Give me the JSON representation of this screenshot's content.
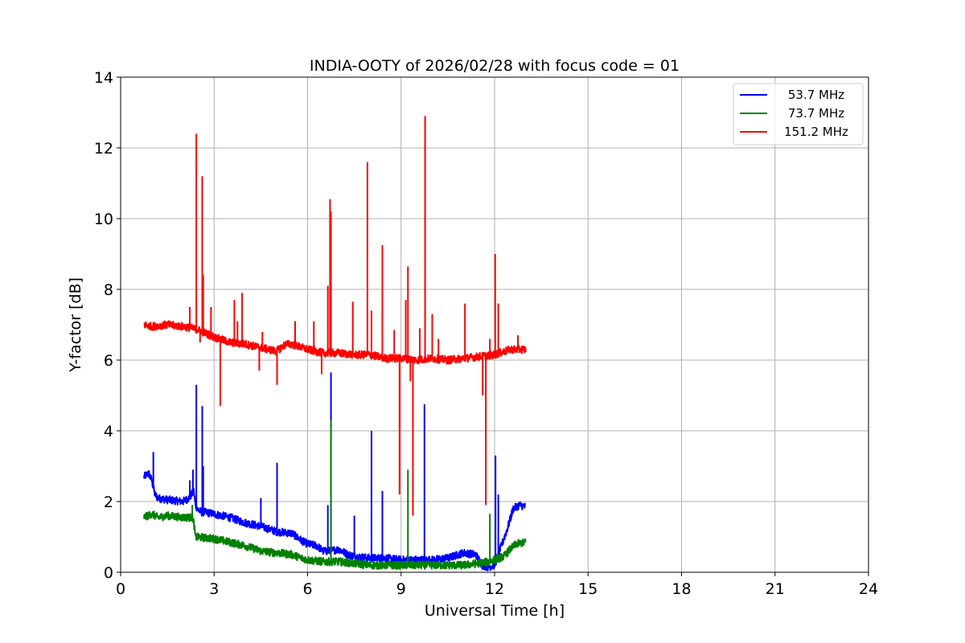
{
  "chart_data": {
    "type": "line",
    "title": "INDIA-OOTY of 2026/02/28 with focus code = 01",
    "xlabel": "Universal Time [h]",
    "ylabel": "Y-factor [dB]",
    "xlim": [
      0,
      24
    ],
    "ylim": [
      0,
      14
    ],
    "x_ticks": [
      0,
      3,
      6,
      9,
      12,
      15,
      18,
      21,
      24
    ],
    "y_ticks": [
      0,
      2,
      4,
      6,
      8,
      10,
      12,
      14
    ],
    "x_tick_labels": [
      "0",
      "3",
      "6",
      "9",
      "12",
      "15",
      "18",
      "21",
      "24"
    ],
    "y_tick_labels": [
      "0",
      "2",
      "4",
      "6",
      "8",
      "10",
      "12",
      "14"
    ],
    "grid": true,
    "legend_position": "top-right",
    "series": [
      {
        "name": " 53.7 MHz",
        "color": "#0000ff",
        "x": [
          0.75,
          0.9,
          1.0,
          1.1,
          1.2,
          1.5,
          2.0,
          2.2,
          2.35,
          2.4,
          2.5,
          2.6,
          2.7,
          3.0,
          3.5,
          4.0,
          4.5,
          5.0,
          5.5,
          5.8,
          6.0,
          6.3,
          6.5,
          6.7,
          7.0,
          7.3,
          7.5,
          8.0,
          8.5,
          9.0,
          9.5,
          10.0,
          10.5,
          11.0,
          11.4,
          11.6,
          11.8,
          12.0,
          12.2,
          12.4,
          12.6,
          12.8,
          13.0
        ],
        "values": [
          2.7,
          2.8,
          2.6,
          2.2,
          2.1,
          2.05,
          2.0,
          2.1,
          2.3,
          1.9,
          1.75,
          1.7,
          1.7,
          1.65,
          1.55,
          1.4,
          1.3,
          1.15,
          1.1,
          0.9,
          0.8,
          0.75,
          0.6,
          0.6,
          0.65,
          0.5,
          0.45,
          0.4,
          0.4,
          0.35,
          0.35,
          0.35,
          0.4,
          0.55,
          0.5,
          0.2,
          0.15,
          0.2,
          0.7,
          1.2,
          1.8,
          1.9,
          1.85
        ],
        "spikes": [
          [
            1.05,
            3.4
          ],
          [
            2.22,
            2.6
          ],
          [
            2.32,
            2.9
          ],
          [
            2.43,
            5.3
          ],
          [
            2.62,
            4.7
          ],
          [
            2.65,
            3.0
          ],
          [
            4.5,
            2.1
          ],
          [
            5.02,
            3.1
          ],
          [
            6.65,
            1.9
          ],
          [
            6.75,
            5.65
          ],
          [
            7.5,
            1.6
          ],
          [
            8.05,
            4.0
          ],
          [
            8.4,
            2.3
          ],
          [
            9.75,
            4.75
          ],
          [
            12.03,
            3.3
          ],
          [
            12.12,
            2.2
          ]
        ]
      },
      {
        "name": " 73.7 MHz",
        "color": "#008000",
        "x": [
          0.75,
          1.0,
          1.2,
          1.5,
          2.0,
          2.3,
          2.35,
          2.4,
          3.0,
          3.5,
          4.0,
          4.5,
          5.0,
          5.5,
          5.8,
          6.0,
          6.5,
          7.0,
          7.5,
          8.0,
          8.5,
          9.0,
          9.5,
          10.0,
          10.5,
          11.0,
          11.5,
          11.8,
          12.0,
          12.3,
          12.5,
          12.7,
          13.0
        ],
        "values": [
          1.55,
          1.65,
          1.55,
          1.6,
          1.55,
          1.55,
          1.4,
          1.0,
          0.95,
          0.85,
          0.75,
          0.6,
          0.55,
          0.5,
          0.4,
          0.35,
          0.3,
          0.3,
          0.25,
          0.2,
          0.2,
          0.2,
          0.2,
          0.2,
          0.2,
          0.2,
          0.25,
          0.3,
          0.35,
          0.45,
          0.65,
          0.8,
          0.85
        ],
        "spikes": [
          [
            2.3,
            1.9
          ],
          [
            6.75,
            4.3
          ],
          [
            9.22,
            2.9
          ],
          [
            11.85,
            1.65
          ]
        ]
      },
      {
        "name": "151.2 MHz",
        "color": "#ff0000",
        "x": [
          0.75,
          1.0,
          1.5,
          2.0,
          2.3,
          2.5,
          3.0,
          3.5,
          4.0,
          4.5,
          5.0,
          5.3,
          5.5,
          6.0,
          6.5,
          7.0,
          7.5,
          8.0,
          8.5,
          9.0,
          9.5,
          10.0,
          10.5,
          11.0,
          11.5,
          12.0,
          12.5,
          13.0
        ],
        "values": [
          7.0,
          6.95,
          7.0,
          6.95,
          6.9,
          6.85,
          6.65,
          6.5,
          6.45,
          6.35,
          6.25,
          6.45,
          6.45,
          6.3,
          6.2,
          6.2,
          6.15,
          6.15,
          6.05,
          6.05,
          6.0,
          6.05,
          6.0,
          6.05,
          6.1,
          6.15,
          6.3,
          6.3
        ],
        "spikes": [
          [
            2.22,
            7.5
          ],
          [
            2.43,
            12.4
          ],
          [
            2.55,
            6.5
          ],
          [
            2.62,
            11.2
          ],
          [
            2.65,
            8.4
          ],
          [
            2.9,
            7.5
          ],
          [
            3.2,
            4.7
          ],
          [
            3.65,
            7.7
          ],
          [
            3.75,
            7.1
          ],
          [
            3.9,
            7.9
          ],
          [
            4.45,
            5.7
          ],
          [
            4.55,
            6.8
          ],
          [
            5.02,
            5.3
          ],
          [
            5.6,
            7.1
          ],
          [
            6.2,
            7.1
          ],
          [
            6.45,
            5.6
          ],
          [
            6.65,
            8.1
          ],
          [
            6.72,
            10.55
          ],
          [
            6.75,
            10.2
          ],
          [
            7.45,
            7.65
          ],
          [
            7.92,
            11.6
          ],
          [
            8.05,
            7.4
          ],
          [
            8.4,
            9.25
          ],
          [
            8.78,
            6.85
          ],
          [
            8.95,
            2.2
          ],
          [
            9.15,
            7.7
          ],
          [
            9.22,
            8.65
          ],
          [
            9.3,
            5.4
          ],
          [
            9.38,
            1.6
          ],
          [
            9.6,
            6.9
          ],
          [
            9.77,
            12.9
          ],
          [
            10.0,
            7.3
          ],
          [
            10.2,
            6.6
          ],
          [
            11.05,
            7.6
          ],
          [
            11.62,
            5.0
          ],
          [
            11.72,
            1.9
          ],
          [
            11.85,
            6.6
          ],
          [
            12.02,
            9.0
          ],
          [
            12.12,
            7.6
          ],
          [
            12.75,
            6.7
          ]
        ]
      }
    ]
  }
}
